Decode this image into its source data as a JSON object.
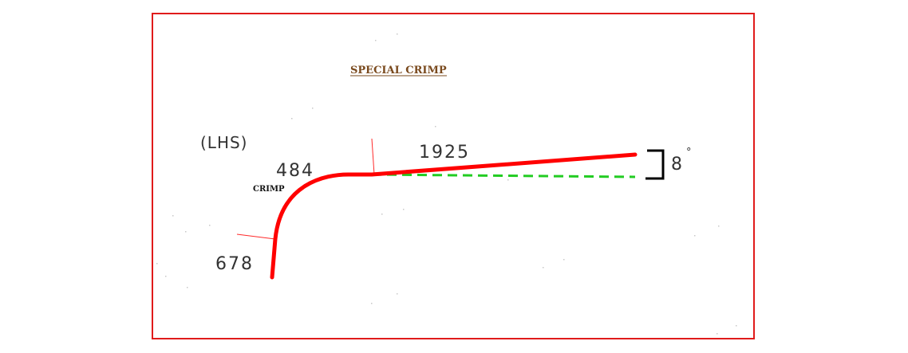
{
  "drawing": {
    "title": "SPECIAL CRIMP",
    "side_label": "(LHS)",
    "crimp_label": "CRIMP",
    "dimensions": {
      "vertical_leg": "678",
      "crimp_radius": "484",
      "main_length": "1925"
    },
    "angle": {
      "value": "8",
      "symbol": "°"
    },
    "colors": {
      "border": "#e01b1b",
      "profile": "#ff0000",
      "reference": "#22cc22",
      "bracket": "#000000",
      "title": "#7a4a1e"
    }
  }
}
